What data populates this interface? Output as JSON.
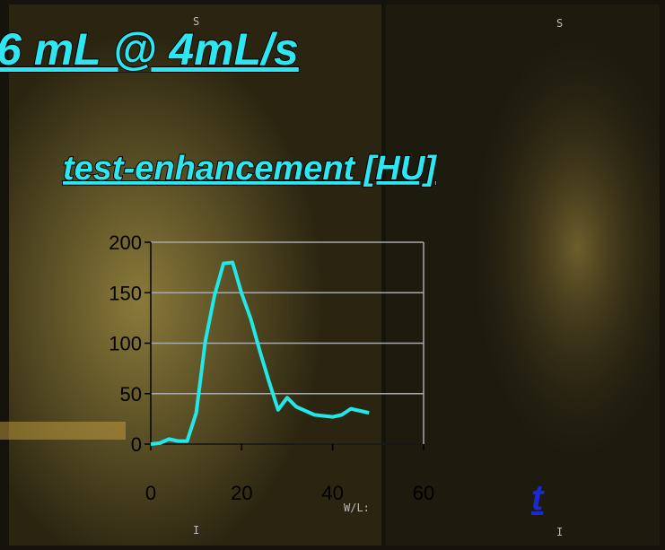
{
  "chart_data": {
    "type": "line",
    "title": "6 mL @ 4mL/s",
    "subtitle": "test-enhancement [HU]",
    "x_label": "t",
    "image_labels": [
      "S",
      "S",
      "I",
      "I",
      "W/L:"
    ],
    "x": [
      0,
      2,
      4,
      6,
      8,
      10,
      12,
      14,
      16,
      18,
      20,
      22,
      24,
      26,
      28,
      30,
      32,
      34,
      36,
      38,
      40,
      42,
      44,
      46,
      48
    ],
    "values": [
      0,
      1,
      5,
      3,
      3,
      31,
      102,
      147,
      179,
      180,
      149,
      124,
      92,
      62,
      34,
      46,
      37,
      33,
      29,
      28,
      27,
      29,
      35,
      33,
      31
    ],
    "color": "#22e8e8",
    "xlim": [
      0,
      60
    ],
    "xticks": [
      0,
      20,
      40,
      60
    ],
    "ylim": [
      0,
      200
    ],
    "yticks": [
      0,
      50,
      100,
      150,
      200
    ],
    "grid": true
  }
}
